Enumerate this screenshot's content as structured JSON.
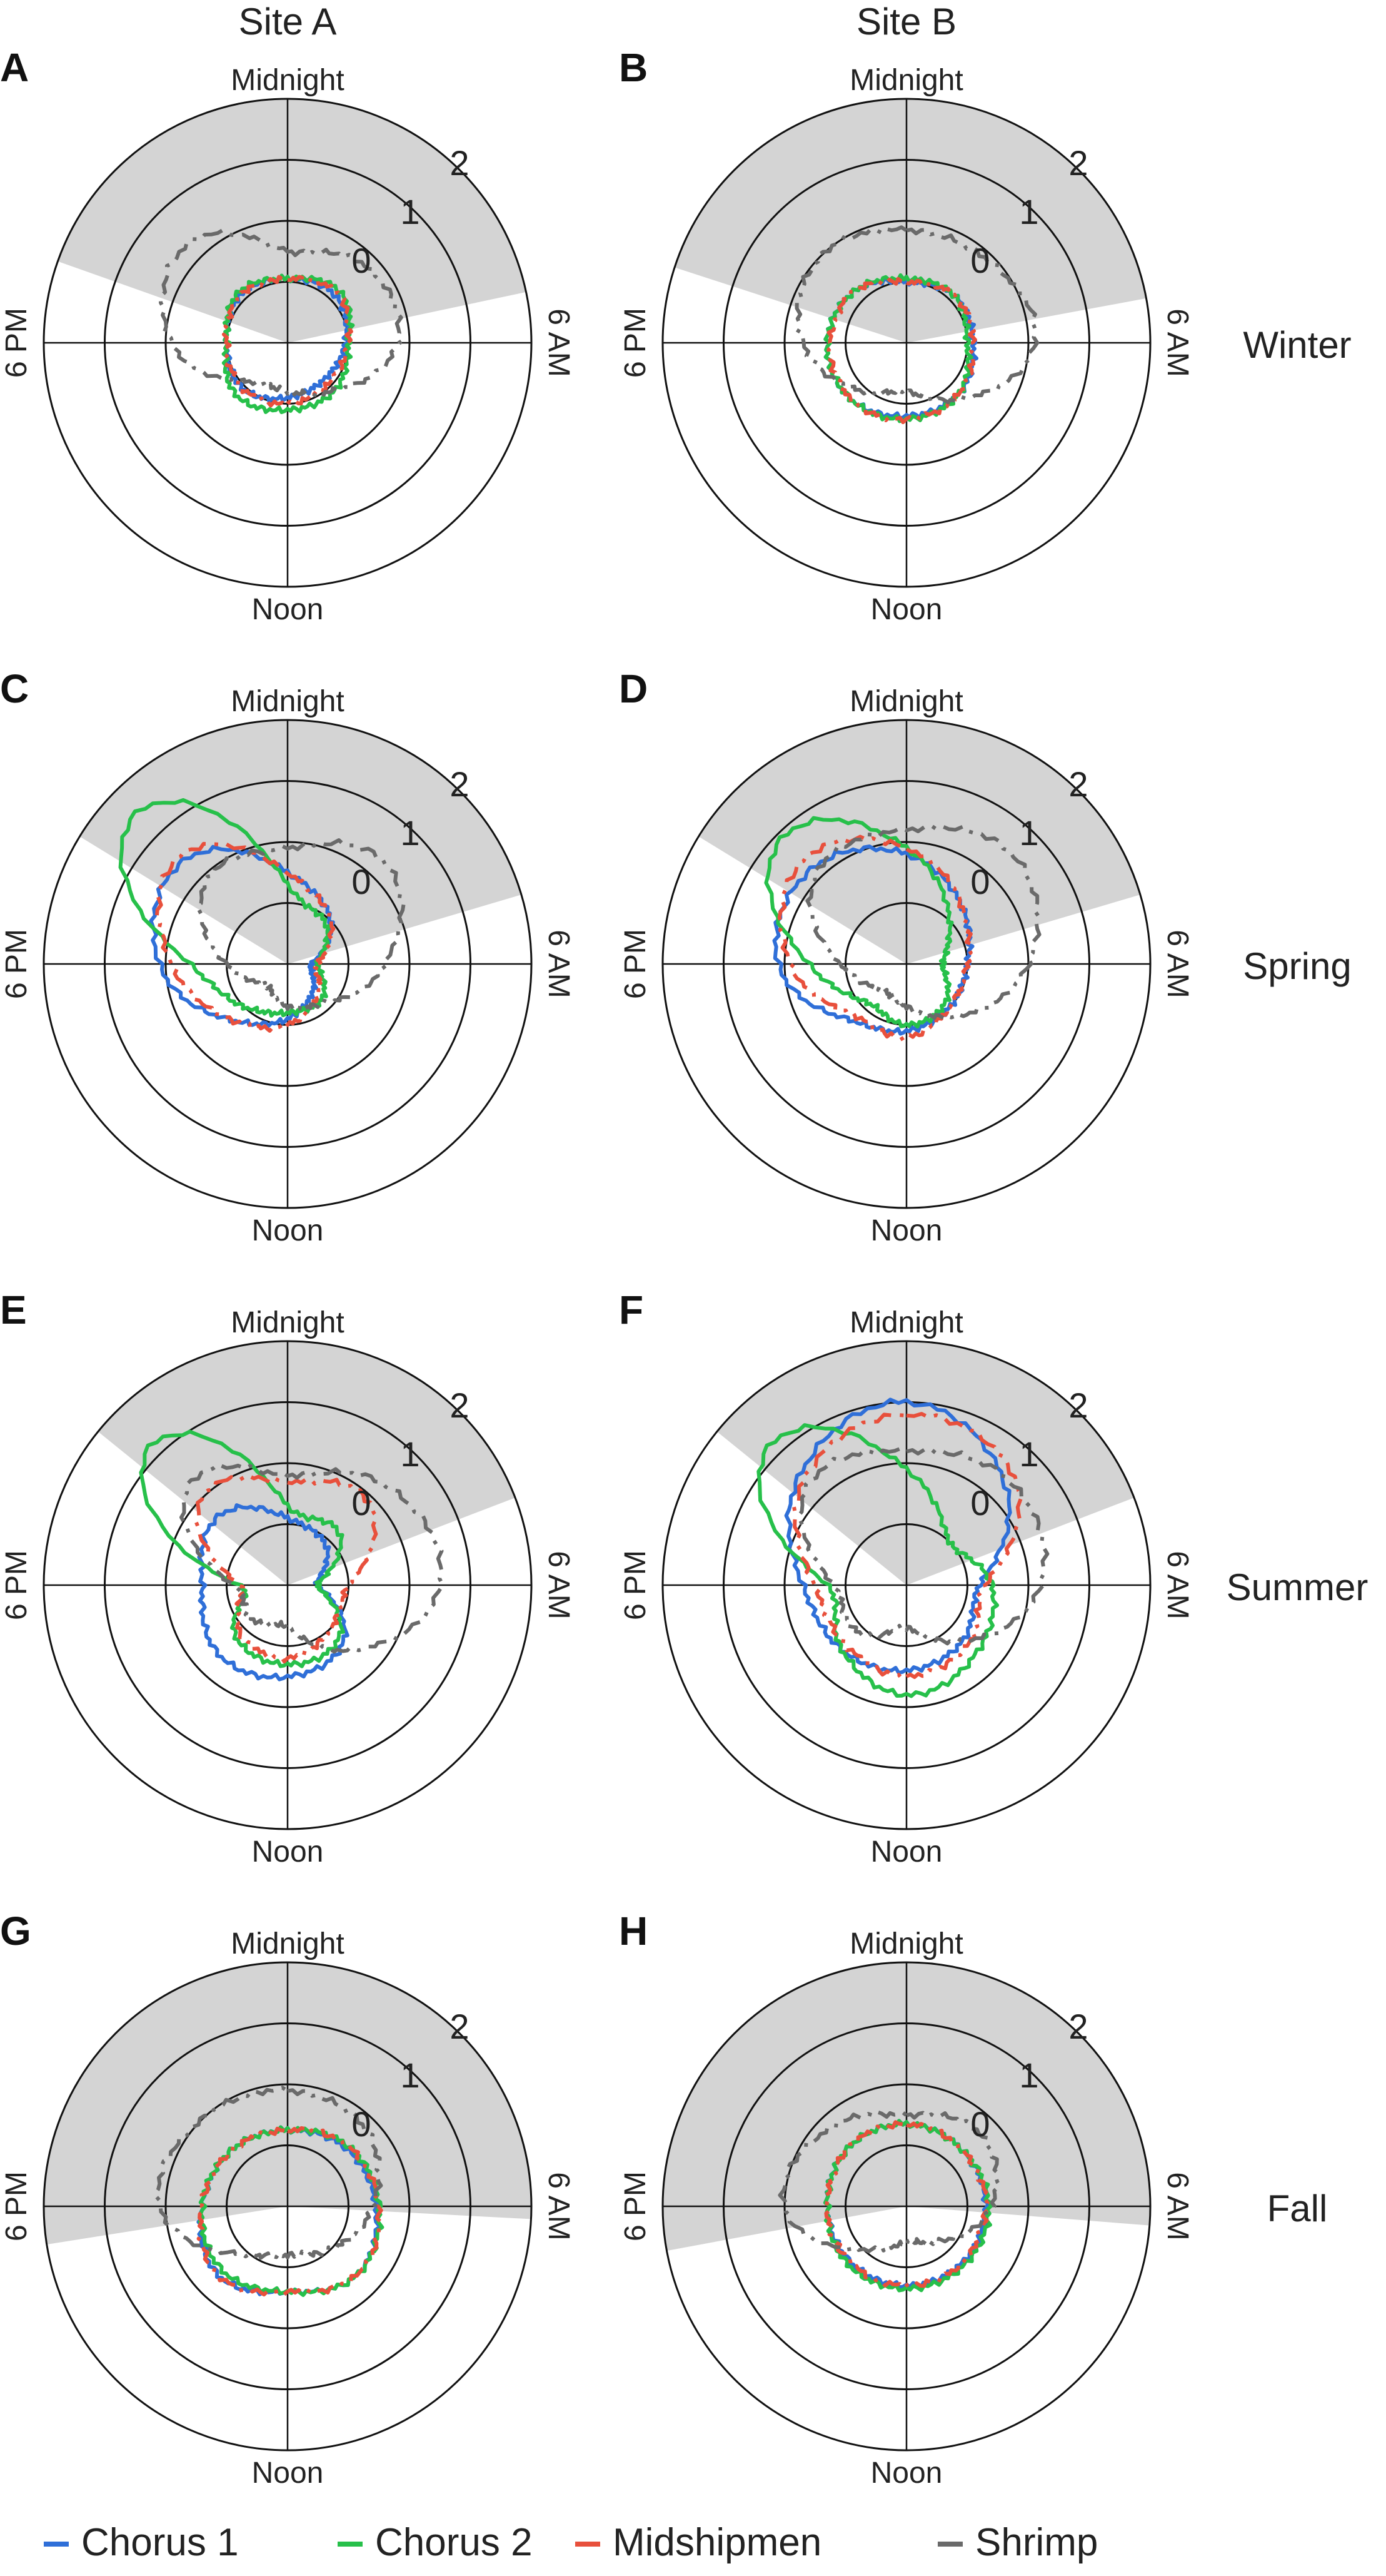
{
  "column_titles": [
    "Site A",
    "Site B"
  ],
  "row_labels": [
    "Winter",
    "Spring",
    "Summer",
    "Fall"
  ],
  "legend": [
    {
      "label": "Chorus 1",
      "color": "#2f6fd8",
      "dash": "solid"
    },
    {
      "label": "Chorus 2",
      "color": "#27c04a",
      "dash": "solid"
    },
    {
      "label": "Midshipmen",
      "color": "#e8503c",
      "dash": "dashdot"
    },
    {
      "label": "Shrimp",
      "color": "#6a6a6a",
      "dash": "dashdot"
    }
  ],
  "chart_data": [
    {
      "type": "polar-line",
      "panel": "A",
      "column": "Site A",
      "season": "Winter",
      "direction_labels": {
        "top": "Midnight",
        "right": "6 AM",
        "bottom": "Noon",
        "left": "6 PM"
      },
      "ring_labels": [
        "0",
        "1",
        "2"
      ],
      "r_range": [
        -1,
        3
      ],
      "night_hours": [
        19.3,
        5.2
      ],
      "series": [
        {
          "name": "Chorus 1",
          "hours": [
            0,
            3,
            6,
            9,
            12,
            15,
            18,
            21
          ],
          "values": [
            0.05,
            0.1,
            -0.05,
            -0.15,
            -0.1,
            0.05,
            0.0,
            0.1
          ]
        },
        {
          "name": "Chorus 2",
          "hours": [
            0,
            3,
            6,
            9,
            12,
            15,
            18,
            21
          ],
          "values": [
            0.05,
            0.2,
            0.0,
            0.1,
            0.1,
            0.2,
            0.0,
            0.15
          ]
        },
        {
          "name": "Midshipmen",
          "hours": [
            0,
            3,
            6,
            9,
            12,
            15,
            18,
            21
          ],
          "values": [
            0.05,
            0.15,
            0.0,
            -0.05,
            0.0,
            0.05,
            0.0,
            0.1
          ]
        },
        {
          "name": "Shrimp",
          "hours": [
            0,
            3,
            6,
            9,
            12,
            15,
            18,
            21
          ],
          "values": [
            0.5,
            0.8,
            0.8,
            0.1,
            -0.2,
            -0.1,
            0.9,
            1.3
          ]
        }
      ]
    },
    {
      "type": "polar-line",
      "panel": "B",
      "column": "Site B",
      "season": "Winter",
      "direction_labels": {
        "top": "Midnight",
        "right": "6 AM",
        "bottom": "Noon",
        "left": "6 PM"
      },
      "ring_labels": [
        "0",
        "1",
        "2"
      ],
      "r_range": [
        -1,
        3
      ],
      "night_hours": [
        19.2,
        5.3
      ],
      "series": [
        {
          "name": "Chorus 1",
          "hours": [
            0,
            3,
            6,
            9,
            12,
            15,
            18,
            21
          ],
          "values": [
            0.0,
            0.1,
            0.1,
            0.2,
            0.2,
            0.3,
            0.3,
            0.2
          ]
        },
        {
          "name": "Chorus 2",
          "hours": [
            0,
            3,
            6,
            9,
            12,
            15,
            18,
            21
          ],
          "values": [
            0.05,
            0.1,
            0.0,
            0.2,
            0.25,
            0.3,
            0.3,
            0.2
          ]
        },
        {
          "name": "Midshipmen",
          "hours": [
            0,
            3,
            6,
            9,
            12,
            15,
            18,
            21
          ],
          "values": [
            0.0,
            0.1,
            0.1,
            0.2,
            0.25,
            0.3,
            0.25,
            0.2
          ]
        },
        {
          "name": "Shrimp",
          "hours": [
            0,
            3,
            6,
            9,
            12,
            15,
            18,
            21
          ],
          "values": [
            0.85,
            0.9,
            1.1,
            0.3,
            -0.2,
            0.1,
            0.7,
            1.0
          ]
        }
      ]
    },
    {
      "type": "polar-line",
      "panel": "C",
      "column": "Site A",
      "season": "Spring",
      "direction_labels": {
        "top": "Midnight",
        "right": "6 AM",
        "bottom": "Noon",
        "left": "6 PM"
      },
      "ring_labels": [
        "0",
        "1",
        "2"
      ],
      "r_range": [
        -1,
        3
      ],
      "night_hours": [
        20.1,
        4.9
      ],
      "series": [
        {
          "name": "Chorus 1",
          "hours": [
            0,
            3,
            6,
            9,
            12,
            15,
            18,
            21
          ],
          "values": [
            0.5,
            0.0,
            -0.6,
            -0.4,
            -0.1,
            0.3,
            1.1,
            1.4
          ]
        },
        {
          "name": "Chorus 2",
          "hours": [
            0,
            3,
            6,
            9,
            12,
            15,
            18,
            21
          ],
          "values": [
            0.3,
            -0.1,
            -0.5,
            -0.2,
            -0.2,
            0.0,
            0.6,
            2.5
          ]
        },
        {
          "name": "Midshipmen",
          "hours": [
            0,
            3,
            6,
            9,
            12,
            15,
            18,
            21
          ],
          "values": [
            0.5,
            0.0,
            -0.5,
            -0.3,
            0.0,
            0.3,
            0.9,
            1.5
          ]
        },
        {
          "name": "Shrimp",
          "hours": [
            0,
            3,
            6,
            9,
            12,
            15,
            18,
            21
          ],
          "values": [
            0.9,
            1.3,
            0.6,
            -0.1,
            -0.3,
            -0.5,
            0.0,
            0.9
          ]
        }
      ]
    },
    {
      "type": "polar-line",
      "panel": "D",
      "column": "Site B",
      "season": "Spring",
      "direction_labels": {
        "top": "Midnight",
        "right": "6 AM",
        "bottom": "Noon",
        "left": "6 PM"
      },
      "ring_labels": [
        "0",
        "1",
        "2"
      ],
      "r_range": [
        -1,
        3
      ],
      "night_hours": [
        20.1,
        4.9
      ],
      "series": [
        {
          "name": "Chorus 1",
          "hours": [
            0,
            3,
            6,
            9,
            12,
            15,
            18,
            21
          ],
          "values": [
            0.8,
            0.3,
            0.0,
            0.0,
            0.1,
            0.3,
            1.1,
            1.2
          ]
        },
        {
          "name": "Chorus 2",
          "hours": [
            0,
            3,
            6,
            9,
            12,
            15,
            18,
            21
          ],
          "values": [
            0.9,
            0.0,
            -0.4,
            -0.1,
            0.0,
            -0.1,
            0.6,
            1.9
          ]
        },
        {
          "name": "Midshipmen",
          "hours": [
            0,
            3,
            6,
            9,
            12,
            15,
            18,
            21
          ],
          "values": [
            0.9,
            0.3,
            0.0,
            0.0,
            0.2,
            0.2,
            0.9,
            1.4
          ]
        },
        {
          "name": "Shrimp",
          "hours": [
            0,
            3,
            6,
            9,
            12,
            15,
            18,
            21
          ],
          "values": [
            1.2,
            1.5,
            1.0,
            0.2,
            -0.3,
            -0.4,
            0.1,
            1.1
          ]
        }
      ]
    },
    {
      "type": "polar-line",
      "panel": "E",
      "column": "Site A",
      "season": "Summer",
      "direction_labels": {
        "top": "Midnight",
        "right": "6 AM",
        "bottom": "Noon",
        "left": "6 PM"
      },
      "ring_labels": [
        "0",
        "1",
        "2"
      ],
      "r_range": [
        -1,
        3
      ],
      "night_hours": [
        20.6,
        4.6
      ],
      "series": [
        {
          "name": "Chorus 1",
          "hours": [
            0,
            3,
            6,
            9,
            12,
            15,
            18,
            21
          ],
          "values": [
            0.1,
            -0.1,
            -0.5,
            0.3,
            0.5,
            0.6,
            0.4,
            0.6
          ]
        },
        {
          "name": "Chorus 2",
          "hours": [
            0,
            3,
            6,
            9,
            12,
            15,
            18,
            21
          ],
          "values": [
            0.3,
            0.2,
            -0.5,
            0.2,
            0.3,
            0.2,
            -0.2,
            2.2
          ]
        },
        {
          "name": "Midshipmen",
          "hours": [
            0,
            3,
            6,
            9,
            12,
            15,
            18,
            21
          ],
          "values": [
            0.7,
            0.9,
            0.0,
            0.0,
            0.2,
            0.1,
            -0.2,
            1.0
          ]
        },
        {
          "name": "Shrimp",
          "hours": [
            0,
            3,
            6,
            9,
            12,
            15,
            18,
            21
          ],
          "values": [
            0.8,
            1.3,
            1.5,
            0.5,
            -0.3,
            -0.2,
            -0.1,
            1.3
          ]
        }
      ]
    },
    {
      "type": "polar-line",
      "panel": "F",
      "column": "Site B",
      "season": "Summer",
      "direction_labels": {
        "top": "Midnight",
        "right": "6 AM",
        "bottom": "Noon",
        "left": "6 PM"
      },
      "ring_labels": [
        "0",
        "1",
        "2"
      ],
      "r_range": [
        -1,
        3
      ],
      "night_hours": [
        20.6,
        4.6
      ],
      "series": [
        {
          "name": "Chorus 1",
          "hours": [
            0,
            3,
            6,
            9,
            12,
            15,
            18,
            21
          ],
          "values": [
            2.0,
            1.3,
            0.2,
            0.3,
            0.4,
            0.5,
            0.7,
            1.5
          ]
        },
        {
          "name": "Chorus 2",
          "hours": [
            0,
            3,
            6,
            9,
            12,
            15,
            18,
            21
          ],
          "values": [
            0.9,
            0.0,
            0.4,
            0.6,
            0.8,
            0.5,
            0.3,
            2.2
          ]
        },
        {
          "name": "Midshipmen",
          "hours": [
            0,
            3,
            6,
            9,
            12,
            15,
            18,
            21
          ],
          "values": [
            1.8,
            1.5,
            0.3,
            0.4,
            0.5,
            0.4,
            0.5,
            1.4
          ]
        },
        {
          "name": "Shrimp",
          "hours": [
            0,
            3,
            6,
            9,
            12,
            15,
            18,
            21
          ],
          "values": [
            1.2,
            1.4,
            1.2,
            0.3,
            -0.3,
            0.1,
            0.2,
            1.3
          ]
        }
      ]
    },
    {
      "type": "polar-line",
      "panel": "G",
      "column": "Site A",
      "season": "Fall",
      "direction_labels": {
        "top": "Midnight",
        "right": "6 AM",
        "bottom": "Noon",
        "left": "6 PM"
      },
      "ring_labels": [
        "0",
        "1",
        "2"
      ],
      "r_range": [
        -1,
        3
      ],
      "night_hours": [
        17.4,
        6.2
      ],
      "series": [
        {
          "name": "Chorus 1",
          "hours": [
            0,
            3,
            6,
            9,
            12,
            15,
            18,
            21
          ],
          "values": [
            0.25,
            0.35,
            0.45,
            0.6,
            0.4,
            0.6,
            0.4,
            0.3
          ]
        },
        {
          "name": "Chorus 2",
          "hours": [
            0,
            3,
            6,
            9,
            12,
            15,
            18,
            21
          ],
          "values": [
            0.25,
            0.4,
            0.5,
            0.6,
            0.4,
            0.5,
            0.4,
            0.3
          ]
        },
        {
          "name": "Midshipmen",
          "hours": [
            0,
            3,
            6,
            9,
            12,
            15,
            18,
            21
          ],
          "values": [
            0.25,
            0.4,
            0.5,
            0.6,
            0.4,
            0.6,
            0.4,
            0.3
          ]
        },
        {
          "name": "Shrimp",
          "hours": [
            0,
            3,
            6,
            9,
            12,
            15,
            18,
            21
          ],
          "values": [
            0.9,
            0.8,
            0.4,
            0.0,
            -0.2,
            0.1,
            1.1,
            1.0
          ]
        }
      ]
    },
    {
      "type": "polar-line",
      "panel": "H",
      "column": "Site B",
      "season": "Fall",
      "direction_labels": {
        "top": "Midnight",
        "right": "6 AM",
        "bottom": "Noon",
        "left": "6 PM"
      },
      "ring_labels": [
        "0",
        "1",
        "2"
      ],
      "r_range": [
        -1,
        3
      ],
      "night_hours": [
        17.3,
        6.3
      ],
      "series": [
        {
          "name": "Chorus 1",
          "hours": [
            0,
            3,
            6,
            9,
            12,
            15,
            18,
            21
          ],
          "values": [
            0.35,
            0.3,
            0.3,
            0.3,
            0.3,
            0.3,
            0.3,
            0.35
          ]
        },
        {
          "name": "Chorus 2",
          "hours": [
            0,
            3,
            6,
            9,
            12,
            15,
            18,
            21
          ],
          "values": [
            0.35,
            0.3,
            0.35,
            0.35,
            0.35,
            0.35,
            0.3,
            0.35
          ]
        },
        {
          "name": "Midshipmen",
          "hours": [
            0,
            3,
            6,
            9,
            12,
            15,
            18,
            21
          ],
          "values": [
            0.35,
            0.3,
            0.3,
            0.3,
            0.3,
            0.3,
            0.3,
            0.35
          ]
        },
        {
          "name": "Shrimp",
          "hours": [
            0,
            3,
            6,
            9,
            12,
            15,
            18,
            21
          ],
          "values": [
            0.5,
            0.7,
            0.4,
            -0.2,
            -0.4,
            0.0,
            1.0,
            0.8
          ]
        }
      ]
    }
  ]
}
